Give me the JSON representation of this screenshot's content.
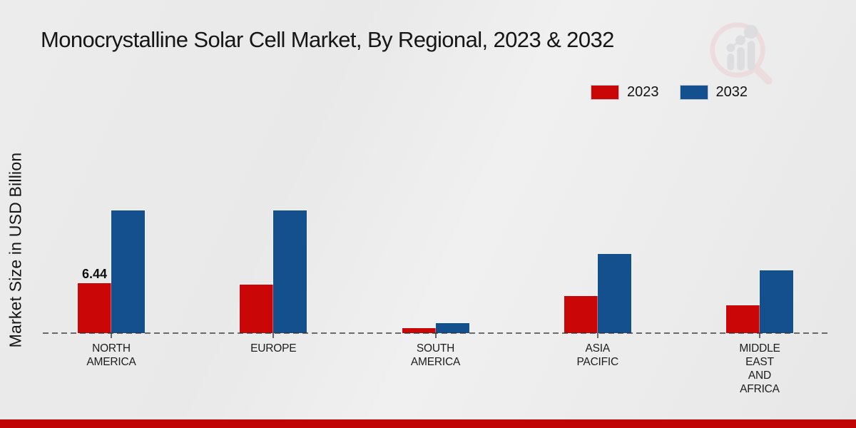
{
  "title": "Monocrystalline Solar Cell Market, By Regional, 2023 & 2032",
  "y_axis_label": "Market Size in USD Billion",
  "legend": {
    "items": [
      {
        "label": "2023",
        "color": "#cb0606"
      },
      {
        "label": "2032",
        "color": "#14508e"
      }
    ]
  },
  "logo": {
    "name": "magnifier-bar-chart-logo",
    "ring_color": "#eccdd2",
    "bars_color": "#cfcfd4"
  },
  "footer": {
    "bar_color": "#c00404"
  },
  "chart_data": {
    "type": "bar",
    "title": "Monocrystalline Solar Cell Market, By Regional, 2023 & 2032",
    "xlabel": "",
    "ylabel": "Market Size in USD Billion",
    "categories": [
      "NORTH AMERICA",
      "EUROPE",
      "SOUTH AMERICA",
      "ASIA PACIFIC",
      "MIDDLE EAST AND AFRICA"
    ],
    "series": [
      {
        "name": "2023",
        "color": "#cb0606",
        "values": [
          6.44,
          6.3,
          0.6,
          4.8,
          3.6
        ]
      },
      {
        "name": "2032",
        "color": "#14508e",
        "values": [
          15.8,
          15.8,
          1.3,
          10.2,
          8.1
        ]
      }
    ],
    "data_labels": [
      {
        "series": "2023",
        "category": "NORTH AMERICA",
        "text": "6.44"
      }
    ],
    "ylim": [
      0,
      20
    ],
    "grid": false,
    "axis_style": "dashed-baseline",
    "legend_position": "top-right",
    "units": "USD Billion"
  }
}
